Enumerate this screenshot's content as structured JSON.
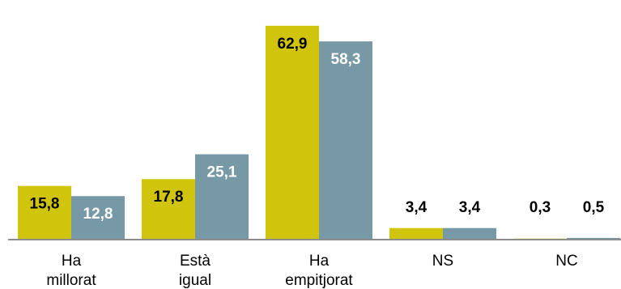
{
  "chart_data": {
    "type": "bar",
    "categories": [
      [
        "Ha",
        "millorat"
      ],
      [
        "Està",
        "igual"
      ],
      [
        "Ha",
        "empitjorat"
      ],
      [
        "NS"
      ],
      [
        "NC"
      ]
    ],
    "series": [
      {
        "values": [
          15.8,
          17.8,
          62.9,
          3.4,
          0.3
        ],
        "labels": [
          "15,8",
          "17,8",
          "62,9",
          "3,4",
          "0,3"
        ],
        "color": "#D0C40C",
        "label_color": "#000000"
      },
      {
        "values": [
          12.8,
          25.1,
          58.3,
          3.4,
          0.5
        ],
        "labels": [
          "12,8",
          "25,1",
          "58,3",
          "3,4",
          "0,5"
        ],
        "color": "#7799A5",
        "label_color": "#FFFFFF"
      }
    ],
    "label_outside_color": "#000000",
    "axis_color": "#8C8C8C",
    "ylim": [
      0,
      65
    ],
    "title": "",
    "xlabel": "",
    "ylabel": "",
    "grid": false,
    "legend": "none"
  }
}
